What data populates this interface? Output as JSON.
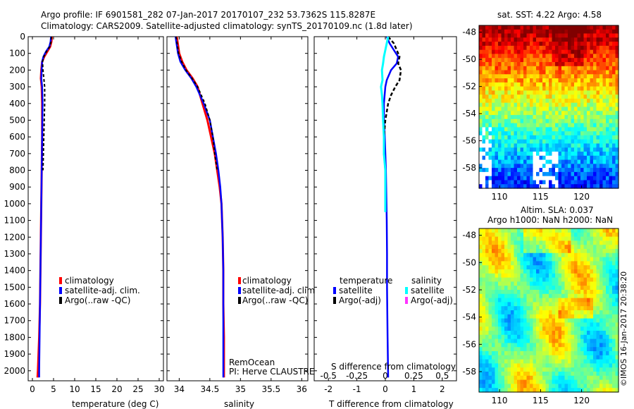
{
  "header": {
    "line1": "Argo profile: IF 6901581_282 07-Jan-2017 20170107_232 53.7362S 115.8287E",
    "line2": "Climatology: CARS2009. Satellite-adjusted climatology: synTS_20170109.nc (1.8d later)"
  },
  "watermark": "©IMOS 16-Jan-2017 20:38:20",
  "colors": {
    "climatology": "#ff0000",
    "satellite": "#0000ff",
    "argo": "#000000",
    "sal_satellite": "#00ffff",
    "sal_argo": "#ff33ff"
  },
  "chart_data": [
    {
      "type": "line",
      "id": "temperature",
      "xlabel": "temperature (deg C)",
      "xlim": [
        -1,
        31
      ],
      "xticks": [
        "0",
        "5",
        "10",
        "15",
        "20",
        "25",
        "30"
      ],
      "xtick_values": [
        0,
        5,
        10,
        15,
        20,
        25,
        30
      ],
      "ylim": [
        2060,
        0
      ],
      "yticks": [
        "0",
        "100",
        "200",
        "300",
        "400",
        "500",
        "600",
        "700",
        "800",
        "900",
        "1000",
        "1100",
        "1200",
        "1300",
        "1400",
        "1500",
        "1600",
        "1700",
        "1800",
        "1900",
        "2000"
      ],
      "ytick_values": [
        0,
        100,
        200,
        300,
        400,
        500,
        600,
        700,
        800,
        900,
        1000,
        1100,
        1200,
        1300,
        1400,
        1500,
        1600,
        1700,
        1800,
        1900,
        2000
      ],
      "legend": [
        "climatology",
        "satellite-adj. clim.",
        "Argo(..raw -QC)"
      ],
      "series": [
        {
          "name": "climatology",
          "depth": [
            0,
            30,
            60,
            90,
            120,
            150,
            200,
            250,
            300,
            400,
            600,
            800,
            1000,
            1200,
            1400,
            1600,
            1800,
            2000,
            2040
          ],
          "values": [
            4.6,
            4.5,
            4.2,
            3.5,
            2.8,
            2.3,
            2.1,
            2.0,
            2.2,
            2.3,
            2.3,
            2.2,
            2.1,
            2.0,
            1.9,
            1.8,
            1.6,
            1.3,
            1.2
          ]
        },
        {
          "name": "satellite-adj. clim.",
          "depth": [
            0,
            30,
            60,
            90,
            120,
            150,
            200,
            250,
            300,
            400,
            600,
            800,
            1000,
            1200,
            1400,
            1600,
            1800,
            2000,
            2040
          ],
          "values": [
            4.4,
            4.3,
            4.0,
            3.2,
            2.6,
            2.3,
            2.2,
            2.1,
            2.3,
            2.4,
            2.3,
            2.2,
            2.1,
            2.0,
            1.9,
            1.8,
            1.7,
            1.6,
            1.6
          ]
        },
        {
          "name": "Argo(..raw -QC)",
          "depth": [
            0,
            30,
            60,
            90,
            120,
            150,
            200,
            250,
            300,
            400,
            500,
            600,
            700,
            800
          ],
          "values": [
            4.5,
            4.4,
            4.1,
            3.3,
            2.7,
            2.4,
            2.5,
            2.7,
            2.9,
            2.9,
            2.8,
            2.7,
            2.6,
            2.5
          ]
        }
      ]
    },
    {
      "type": "line",
      "id": "salinity",
      "xlabel": "salinity",
      "xlim": [
        33.8,
        36.1
      ],
      "xticks": [
        "34",
        "34.5",
        "35",
        "35.5",
        "36"
      ],
      "xtick_values": [
        34,
        34.5,
        35,
        35.5,
        36
      ],
      "ylim": [
        2060,
        0
      ],
      "legend": [
        "climatology",
        "satellite-adj. clim.",
        "Argo(..raw -QC)"
      ],
      "annotation": [
        "RemOcean",
        "PI: Herve CLAUSTRE"
      ],
      "series": [
        {
          "name": "climatology",
          "depth": [
            0,
            50,
            100,
            150,
            200,
            250,
            300,
            400,
            500,
            600,
            700,
            800,
            900,
            1000,
            1200,
            1400,
            1600,
            1800,
            2000,
            2040
          ],
          "values": [
            33.96,
            33.98,
            34.0,
            34.05,
            34.12,
            34.22,
            34.3,
            34.38,
            34.46,
            34.52,
            34.58,
            34.62,
            34.66,
            34.69,
            34.71,
            34.72,
            34.72,
            34.73,
            34.73,
            34.73
          ]
        },
        {
          "name": "satellite-adj. clim.",
          "depth": [
            0,
            50,
            100,
            150,
            200,
            250,
            300,
            400,
            500,
            600,
            700,
            800,
            900,
            1000,
            1200,
            1400,
            1600,
            1800,
            2000,
            2040
          ],
          "values": [
            33.94,
            33.96,
            33.98,
            34.02,
            34.1,
            34.2,
            34.28,
            34.4,
            34.5,
            34.55,
            34.6,
            34.64,
            34.67,
            34.69,
            34.71,
            34.72,
            34.72,
            34.72,
            34.72,
            34.72
          ]
        },
        {
          "name": "Argo(..raw -QC)",
          "depth": [
            0,
            50,
            100,
            150,
            200,
            250,
            300,
            400,
            500,
            600,
            700,
            800
          ],
          "values": [
            33.95,
            33.97,
            33.99,
            34.04,
            34.11,
            34.21,
            34.3,
            34.42,
            34.5,
            34.55,
            34.58,
            34.62
          ]
        }
      ]
    },
    {
      "type": "line",
      "id": "difference",
      "xlabel": "T difference from climatology",
      "xlabel_top": "S difference from climatology",
      "xlim": [
        -2.5,
        2.5
      ],
      "xticks": [
        "-2",
        "-1",
        "0",
        "1",
        "2"
      ],
      "xtick_values": [
        -2,
        -1,
        0,
        1,
        2
      ],
      "s_xticks": [
        "-0.5",
        "-0.25",
        "0",
        "0.25",
        "0.5"
      ],
      "s_xtick_values": [
        -2,
        -1,
        0,
        1,
        2
      ],
      "ylim": [
        2060,
        0
      ],
      "legend_groups": [
        {
          "title": "temperature",
          "items": [
            "satellite",
            "Argo(-adj)"
          ]
        },
        {
          "title": "salinity",
          "items": [
            "satellite",
            "Argo(-adj)"
          ]
        }
      ],
      "series": [
        {
          "name": "temperature satellite",
          "depth": [
            0,
            40,
            80,
            120,
            160,
            200,
            260,
            300,
            400,
            500,
            600,
            700,
            800,
            900,
            1000,
            1100,
            1300,
            1500,
            1800,
            2040
          ],
          "values": [
            0.05,
            0.15,
            0.3,
            0.45,
            0.4,
            0.2,
            0.05,
            0.0,
            -0.05,
            -0.05,
            -0.02,
            0.0,
            0.02,
            0.03,
            0.04,
            0.05,
            0.06,
            0.06,
            0.08,
            0.1
          ]
        },
        {
          "name": "temperature Argo(-adj)",
          "depth": [
            0,
            40,
            80,
            120,
            160,
            200,
            260,
            300,
            350,
            400,
            500,
            600,
            700,
            800
          ],
          "values": [
            0.1,
            0.3,
            0.4,
            0.5,
            0.45,
            0.55,
            0.5,
            0.35,
            0.2,
            0.1,
            0.0,
            -0.05,
            -0.05,
            0.0
          ]
        },
        {
          "name": "salinity satellite",
          "depth": [
            0,
            40,
            80,
            120,
            160,
            200,
            260,
            300,
            350,
            400,
            500,
            600,
            700,
            800,
            1000,
            1050
          ],
          "values": [
            0.1,
            0.05,
            0.0,
            -0.05,
            -0.08,
            -0.12,
            -0.1,
            -0.15,
            -0.12,
            -0.1,
            -0.08,
            -0.05,
            -0.05,
            0.0,
            0.0,
            0.0
          ]
        }
      ]
    },
    {
      "type": "heatmap",
      "id": "sst-map",
      "title": "sat. SST: 4.22 Argo: 4.58",
      "xticks": [
        "110",
        "115",
        "120"
      ],
      "xtick_values": [
        110,
        115,
        120
      ],
      "yticks": [
        "-48",
        "-50",
        "-52",
        "-54",
        "-56",
        "-58"
      ],
      "ytick_values": [
        -48,
        -50,
        -52,
        -54,
        -56,
        -58
      ],
      "xlim": [
        107.5,
        124.5
      ],
      "ylim": [
        -59.5,
        -47.5
      ],
      "sst_rows_warm_to_cold": [
        12,
        11,
        10,
        8,
        6,
        5,
        4.5,
        4,
        3.5,
        3,
        2.5,
        2,
        1.5
      ]
    },
    {
      "type": "heatmap",
      "id": "sla-map",
      "title": "Altim. SLA: 0.037",
      "subtitle": "Argo h1000: NaN h2000: NaN",
      "xticks": [
        "110",
        "115",
        "120"
      ],
      "xtick_values": [
        110,
        115,
        120
      ],
      "yticks": [
        "-48",
        "-50",
        "-52",
        "-54",
        "-56",
        "-58"
      ],
      "ytick_values": [
        -48,
        -50,
        -52,
        -54,
        -56,
        -58
      ],
      "xlim": [
        107.5,
        124.5
      ],
      "ylim": [
        -59.5,
        -47.5
      ]
    }
  ]
}
